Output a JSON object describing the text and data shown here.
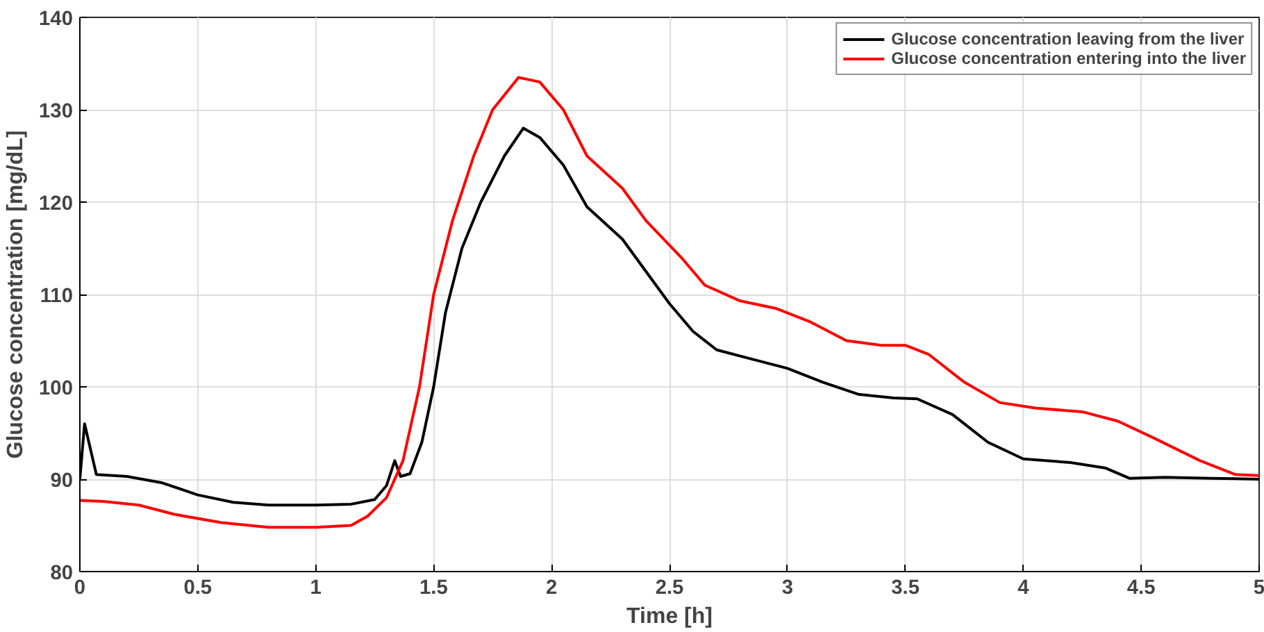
{
  "chart_data": {
    "type": "line",
    "xlabel": "Time [h]",
    "ylabel": "Glucose concentration [mg/dL]",
    "xlim": [
      0,
      5
    ],
    "ylim": [
      80,
      140
    ],
    "xticks": [
      0,
      0.5,
      1,
      1.5,
      2,
      2.5,
      3,
      3.5,
      4,
      4.5,
      5
    ],
    "yticks": [
      80,
      90,
      100,
      110,
      120,
      130,
      140
    ],
    "grid": true,
    "legend": "top right",
    "line_style": "solid",
    "marker": "none",
    "series": [
      {
        "name": "Glucose concentration leaving from the liver",
        "color": "#000000",
        "x": [
          0,
          0.02,
          0.07,
          0.2,
          0.35,
          0.5,
          0.65,
          0.8,
          1.0,
          1.15,
          1.25,
          1.3,
          1.335,
          1.36,
          1.4,
          1.45,
          1.5,
          1.55,
          1.62,
          1.7,
          1.8,
          1.88,
          1.95,
          2.05,
          2.15,
          2.3,
          2.4,
          2.5,
          2.6,
          2.7,
          2.85,
          3.0,
          3.15,
          3.3,
          3.45,
          3.55,
          3.7,
          3.85,
          4.0,
          4.2,
          4.35,
          4.45,
          4.6,
          4.8,
          5.0
        ],
        "values": [
          90,
          96,
          90.5,
          90.3,
          89.6,
          88.3,
          87.5,
          87.2,
          87.2,
          87.3,
          87.8,
          89.3,
          92,
          90.3,
          90.6,
          94,
          100,
          108,
          115,
          120,
          125,
          128,
          127,
          124,
          119.5,
          116,
          112.5,
          109,
          106,
          104,
          103,
          102,
          100.5,
          99.2,
          98.8,
          98.7,
          97,
          94,
          92.2,
          91.8,
          91.2,
          90.1,
          90.2,
          90.1,
          90.0
        ]
      },
      {
        "name": "Glucose concentration entering into the liver",
        "color": "#ff0000",
        "x": [
          0,
          0.1,
          0.25,
          0.4,
          0.6,
          0.8,
          1.0,
          1.15,
          1.22,
          1.3,
          1.37,
          1.44,
          1.5,
          1.58,
          1.67,
          1.75,
          1.86,
          1.95,
          2.05,
          2.15,
          2.3,
          2.4,
          2.55,
          2.65,
          2.8,
          2.95,
          3.1,
          3.25,
          3.4,
          3.5,
          3.6,
          3.75,
          3.9,
          4.05,
          4.25,
          4.4,
          4.55,
          4.75,
          4.9,
          5.0
        ],
        "values": [
          87.7,
          87.6,
          87.2,
          86.2,
          85.3,
          84.8,
          84.8,
          85.0,
          86,
          88,
          92,
          100,
          110,
          118,
          125,
          130,
          133.5,
          133,
          130,
          125,
          121.5,
          118,
          114,
          111,
          109.3,
          108.5,
          107,
          105,
          104.5,
          104.5,
          103.5,
          100.5,
          98.3,
          97.7,
          97.3,
          96.3,
          94.5,
          92,
          90.5,
          90.4
        ]
      }
    ]
  }
}
